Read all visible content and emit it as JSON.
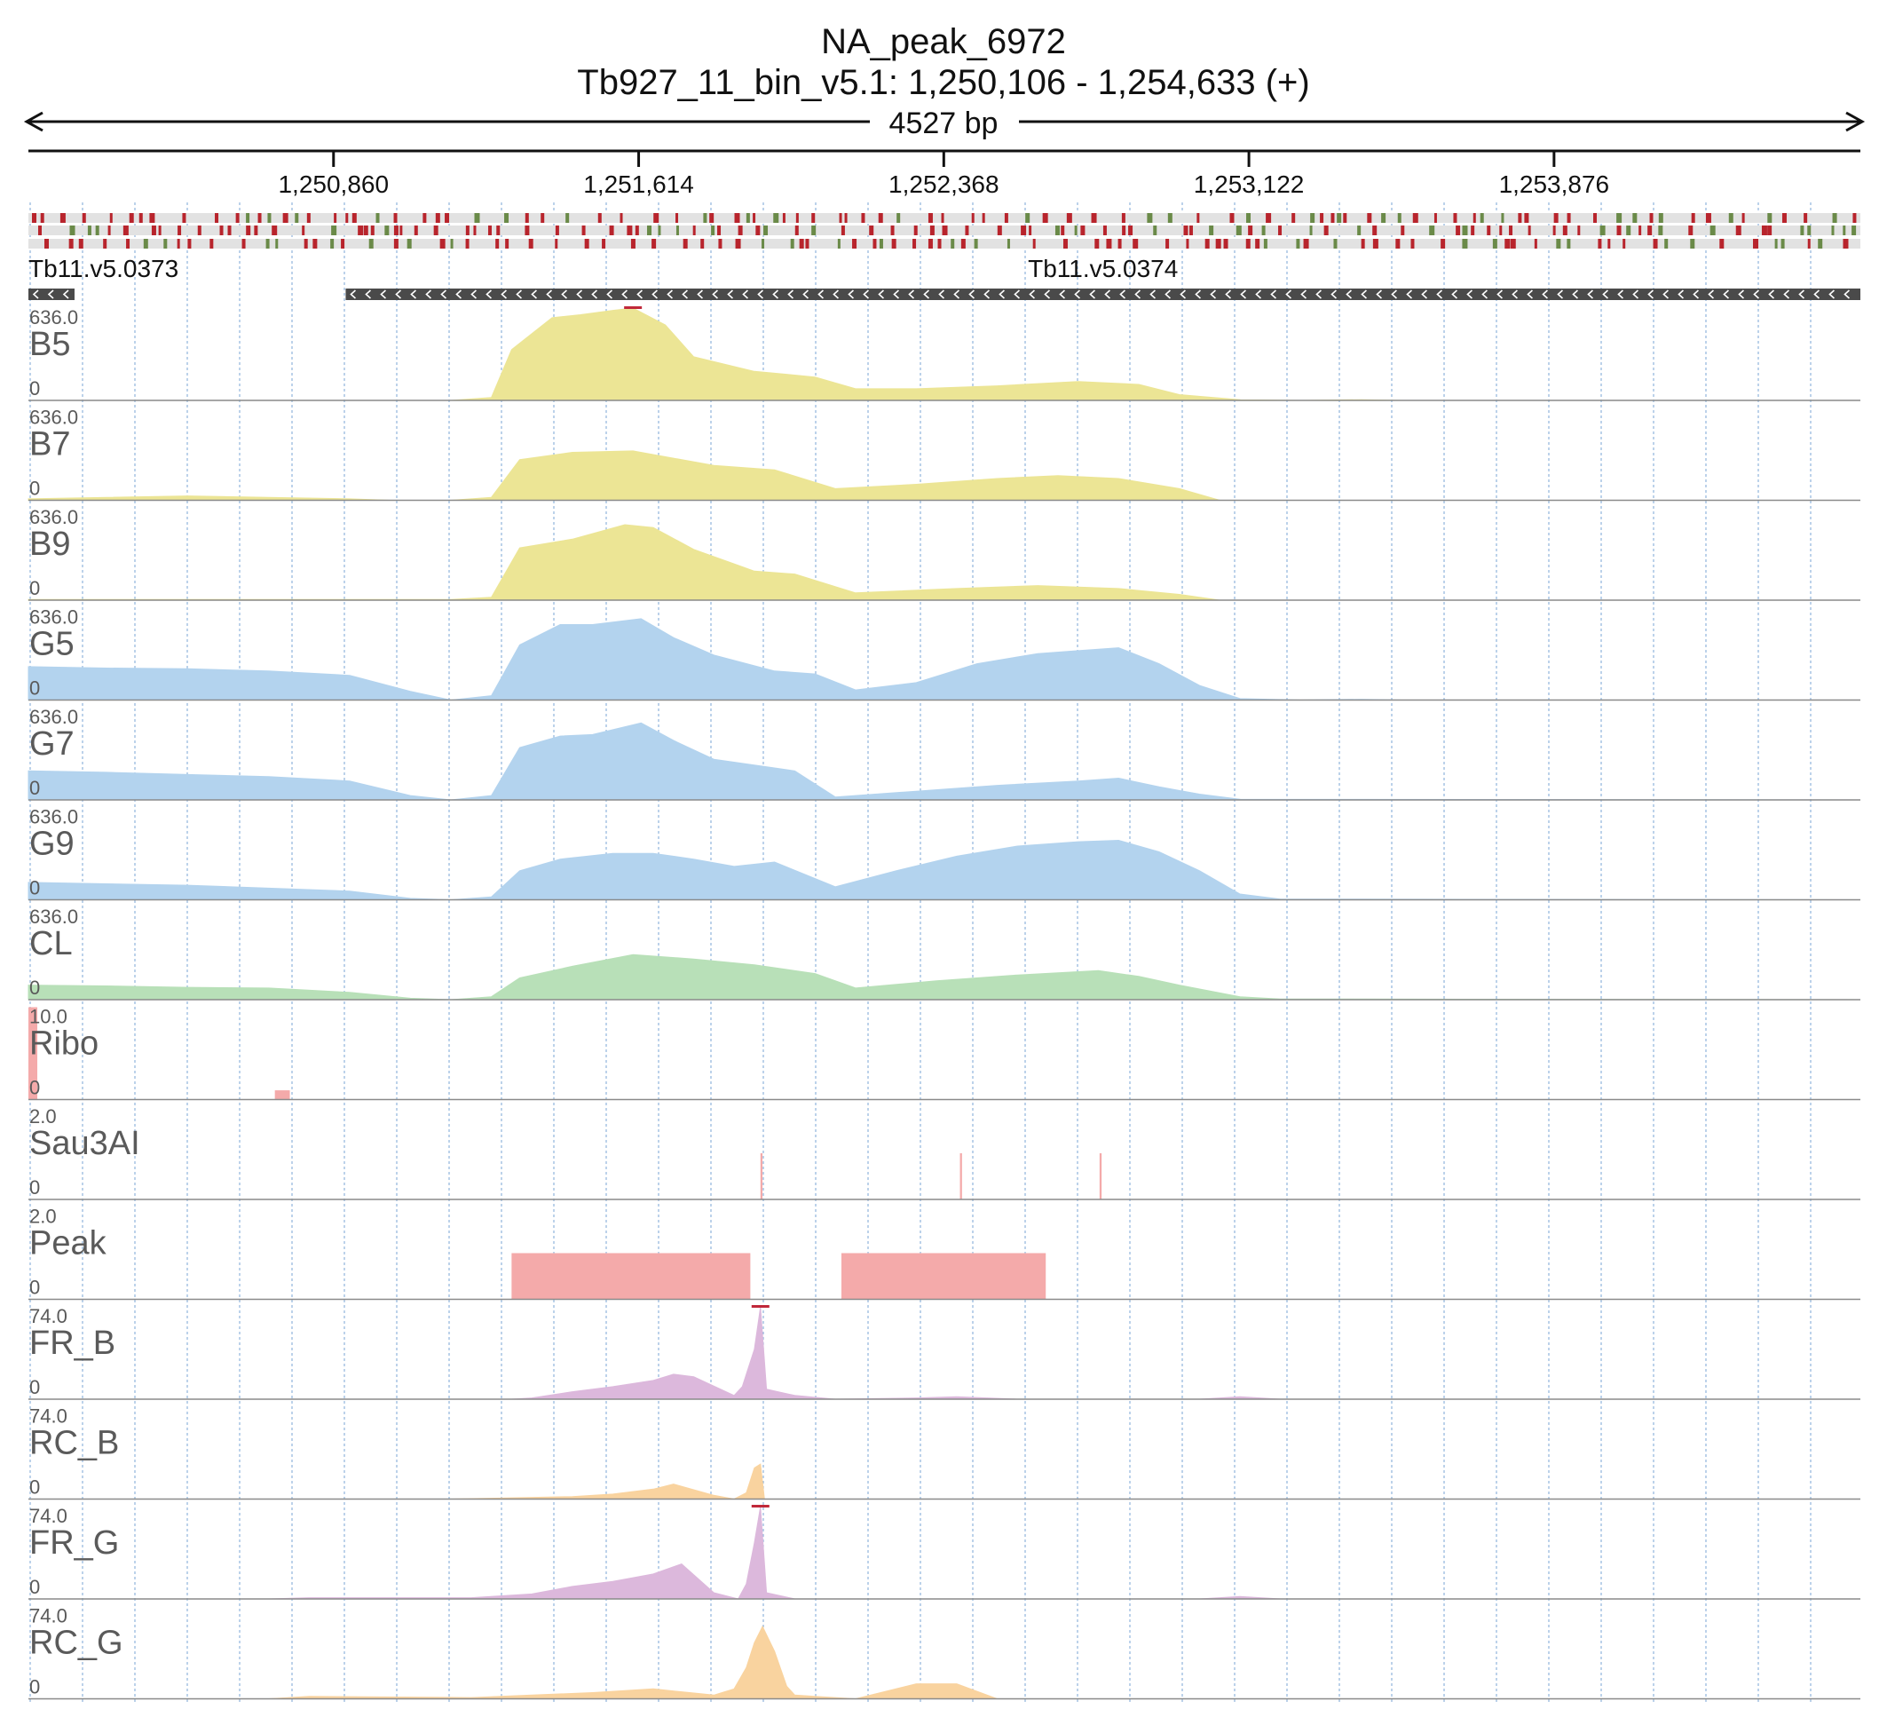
{
  "header": {
    "title": "NA_peak_6972",
    "locus": "Tb927_11_bin_v5.1: 1,250,106 - 1,254,633 (+)",
    "span_label": "4527 bp"
  },
  "colors": {
    "yellow": "#ece595",
    "blue": "#b3d3ee",
    "green": "#b8e0b8",
    "red": "#f4aaaa",
    "purple": "#dcb8dc",
    "orange": "#f9d39f",
    "gene": "#4a4a4a",
    "grid": "#8fb4dc",
    "sequence_red": "#b8242c",
    "sequence_green": "#6a8a48",
    "clip_marker": "#c0283a"
  },
  "chart_data": {
    "type": "area",
    "x_range": [
      1250106,
      1254633
    ],
    "ticks": [
      {
        "pos": 1250860,
        "label": "1,250,860"
      },
      {
        "pos": 1251614,
        "label": "1,251,614"
      },
      {
        "pos": 1252368,
        "label": "1,252,368"
      },
      {
        "pos": 1253122,
        "label": "1,253,122"
      },
      {
        "pos": 1253876,
        "label": "1,253,876"
      }
    ],
    "genes": [
      {
        "name": "Tb11.v5.0373",
        "start": 1250106,
        "end": 1250220,
        "strand": "-"
      },
      {
        "name": "Tb11.v5.0374",
        "start": 1250890,
        "end": 1254633,
        "strand": "-"
      }
    ],
    "tracks": [
      {
        "name": "B5",
        "max_label": "636.0",
        "min_label": "0",
        "max": 636,
        "color": "yellow",
        "x": [
          1250106,
          1251150,
          1251250,
          1251300,
          1251400,
          1251470,
          1251550,
          1251600,
          1251680,
          1251750,
          1251900,
          1251980,
          1252050,
          1252150,
          1252300,
          1252500,
          1252700,
          1252850,
          1252950,
          1253100,
          1253250,
          1253400,
          1253500,
          1254633
        ],
        "y": [
          0,
          0,
          20,
          350,
          570,
          590,
          620,
          640,
          520,
          300,
          200,
          180,
          160,
          80,
          80,
          100,
          130,
          110,
          40,
          5,
          0,
          5,
          0,
          0
        ]
      },
      {
        "name": "B7",
        "max_label": "636.0",
        "min_label": "0",
        "max": 636,
        "color": "yellow",
        "x": [
          1250106,
          1250300,
          1250500,
          1250700,
          1250900,
          1251000,
          1251150,
          1251250,
          1251320,
          1251450,
          1251600,
          1251800,
          1251950,
          1252100,
          1252300,
          1252500,
          1252650,
          1252800,
          1252950,
          1253050,
          1254633
        ],
        "y": [
          10,
          20,
          30,
          20,
          10,
          0,
          0,
          20,
          280,
          330,
          340,
          240,
          210,
          80,
          110,
          150,
          170,
          150,
          80,
          0,
          0
        ]
      },
      {
        "name": "B9",
        "max_label": "636.0",
        "min_label": "0",
        "max": 636,
        "color": "yellow",
        "x": [
          1250106,
          1251150,
          1251250,
          1251320,
          1251450,
          1251580,
          1251650,
          1251750,
          1251900,
          1252000,
          1252150,
          1252400,
          1252600,
          1252800,
          1252950,
          1253050,
          1254633
        ],
        "y": [
          5,
          5,
          20,
          360,
          420,
          520,
          500,
          350,
          200,
          180,
          50,
          80,
          100,
          80,
          40,
          0,
          0
        ]
      },
      {
        "name": "G5",
        "max_label": "636.0",
        "min_label": "0",
        "max": 636,
        "color": "blue",
        "x": [
          1250106,
          1250300,
          1250500,
          1250700,
          1250900,
          1251050,
          1251150,
          1251250,
          1251320,
          1251420,
          1251500,
          1251620,
          1251700,
          1251800,
          1251950,
          1252050,
          1252150,
          1252300,
          1252450,
          1252600,
          1252700,
          1252800,
          1252900,
          1253000,
          1253100,
          1253250,
          1253400,
          1253500,
          1254633
        ],
        "y": [
          230,
          220,
          215,
          200,
          170,
          60,
          0,
          30,
          380,
          520,
          520,
          560,
          430,
          310,
          200,
          180,
          70,
          120,
          250,
          320,
          340,
          360,
          250,
          100,
          10,
          0,
          5,
          0,
          0
        ]
      },
      {
        "name": "G7",
        "max_label": "636.0",
        "min_label": "0",
        "max": 636,
        "color": "blue",
        "x": [
          1250106,
          1250300,
          1250500,
          1250700,
          1250900,
          1251050,
          1251150,
          1251250,
          1251320,
          1251420,
          1251500,
          1251620,
          1251700,
          1251800,
          1251950,
          1252000,
          1252100,
          1252300,
          1252500,
          1252700,
          1252800,
          1252900,
          1253000,
          1253100,
          1254633
        ],
        "y": [
          200,
          190,
          175,
          160,
          130,
          30,
          0,
          30,
          360,
          440,
          450,
          530,
          410,
          280,
          220,
          200,
          20,
          60,
          100,
          130,
          150,
          90,
          40,
          5,
          0
        ]
      },
      {
        "name": "G9",
        "max_label": "636.0",
        "min_label": "0",
        "max": 636,
        "color": "blue",
        "x": [
          1250106,
          1250300,
          1250500,
          1250700,
          1250900,
          1251050,
          1251150,
          1251250,
          1251320,
          1251420,
          1251550,
          1251650,
          1251750,
          1251850,
          1251950,
          1252100,
          1252250,
          1252400,
          1252550,
          1252700,
          1252800,
          1252900,
          1253000,
          1253100,
          1253200,
          1254633
        ],
        "y": [
          120,
          110,
          100,
          80,
          60,
          10,
          0,
          20,
          200,
          280,
          320,
          320,
          280,
          230,
          260,
          90,
          200,
          300,
          370,
          400,
          410,
          330,
          200,
          40,
          5,
          0
        ]
      },
      {
        "name": "CL",
        "max_label": "636.0",
        "min_label": "0",
        "max": 636,
        "color": "green",
        "x": [
          1250106,
          1250300,
          1250500,
          1250700,
          1250900,
          1251050,
          1251150,
          1251250,
          1251320,
          1251450,
          1251600,
          1251750,
          1251900,
          1252050,
          1252150,
          1252350,
          1252550,
          1252750,
          1252850,
          1252950,
          1253100,
          1253200,
          1254633
        ],
        "y": [
          100,
          95,
          85,
          80,
          50,
          10,
          0,
          20,
          150,
          230,
          310,
          280,
          240,
          180,
          80,
          130,
          170,
          200,
          160,
          100,
          20,
          5,
          0
        ]
      },
      {
        "name": "Ribo",
        "max_label": "10.0",
        "min_label": "0",
        "max": 10,
        "color": "red",
        "bars": [
          {
            "start": 1250106,
            "end": 1250128,
            "value": 10.0
          },
          {
            "start": 1250715,
            "end": 1250752,
            "value": 1.0
          }
        ]
      },
      {
        "name": "Sau3AI",
        "max_label": "2.0",
        "min_label": "0",
        "max": 2,
        "color": "red",
        "bars": [
          {
            "start": 1251915,
            "end": 1251920,
            "value": 1.0
          },
          {
            "start": 1252408,
            "end": 1252413,
            "value": 1.0
          },
          {
            "start": 1252753,
            "end": 1252758,
            "value": 1.0
          }
        ]
      },
      {
        "name": "Peak",
        "max_label": "2.0",
        "min_label": "0",
        "max": 2,
        "color": "red",
        "bars": [
          {
            "start": 1251300,
            "end": 1251890,
            "value": 1.0
          },
          {
            "start": 1252115,
            "end": 1252620,
            "value": 1.0
          }
        ]
      },
      {
        "name": "FR_B",
        "max_label": "74.0",
        "min_label": "0",
        "max": 74,
        "color": "purple",
        "x": [
          1250106,
          1251300,
          1251350,
          1251450,
          1251550,
          1251650,
          1251700,
          1251750,
          1251850,
          1251870,
          1251880,
          1251900,
          1251915,
          1251930,
          1252000,
          1252100,
          1252300,
          1252400,
          1252550,
          1253000,
          1253100,
          1253200,
          1254633
        ],
        "y": [
          0,
          0,
          1,
          6,
          10,
          15,
          20,
          18,
          3,
          10,
          20,
          40,
          74,
          8,
          3,
          0,
          1,
          2,
          0,
          0,
          2,
          0,
          0
        ]
      },
      {
        "name": "RC_B",
        "max_label": "74.0",
        "min_label": "0",
        "max": 74,
        "color": "orange",
        "x": [
          1250106,
          1251150,
          1251300,
          1251450,
          1251550,
          1251650,
          1251700,
          1251800,
          1251850,
          1251880,
          1251900,
          1251915,
          1251925,
          1252000,
          1254633
        ],
        "y": [
          0,
          0,
          1,
          2,
          4,
          8,
          12,
          3,
          0,
          5,
          25,
          28,
          0,
          0,
          0
        ]
      },
      {
        "name": "FR_G",
        "max_label": "74.0",
        "min_label": "0",
        "max": 74,
        "color": "purple",
        "x": [
          1250106,
          1250700,
          1250800,
          1251200,
          1251350,
          1251450,
          1251550,
          1251650,
          1251720,
          1251800,
          1251860,
          1251880,
          1251900,
          1251915,
          1251930,
          1252000,
          1253000,
          1253100,
          1253200,
          1254633
        ],
        "y": [
          0,
          0,
          1,
          1,
          4,
          10,
          14,
          20,
          28,
          5,
          0,
          12,
          45,
          74,
          5,
          0,
          0,
          2,
          0,
          0
        ]
      },
      {
        "name": "RC_G",
        "max_label": "74.0",
        "min_label": "0",
        "max": 74,
        "color": "orange",
        "x": [
          1250106,
          1250700,
          1250800,
          1251200,
          1251350,
          1251500,
          1251650,
          1251800,
          1251850,
          1251880,
          1251900,
          1251920,
          1251950,
          1251980,
          1252000,
          1252050,
          1252150,
          1252300,
          1252400,
          1252500,
          1254633
        ],
        "y": [
          0,
          0,
          2,
          1,
          3,
          5,
          8,
          3,
          8,
          25,
          45,
          58,
          38,
          10,
          3,
          2,
          0,
          12,
          12,
          0,
          0
        ]
      }
    ]
  }
}
